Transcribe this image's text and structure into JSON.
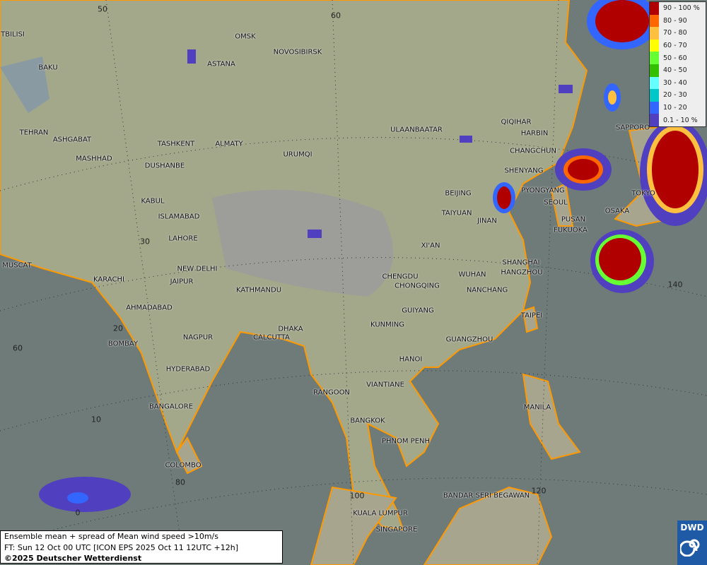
{
  "legend": {
    "title": "",
    "items": [
      {
        "label": "90 - 100 %",
        "color": "#b00000"
      },
      {
        "label": "80 - 90",
        "color": "#ff6600"
      },
      {
        "label": "70 - 80",
        "color": "#ffc040"
      },
      {
        "label": "60 - 70",
        "color": "#ffff00"
      },
      {
        "label": "50 - 60",
        "color": "#66ff33"
      },
      {
        "label": "40 - 50",
        "color": "#33c000"
      },
      {
        "label": "30 - 40",
        "color": "#66ffff"
      },
      {
        "label": "20 - 30",
        "color": "#00c8c8"
      },
      {
        "label": "10 - 20",
        "color": "#3366ff"
      },
      {
        "label": "0.1 - 10 %",
        "color": "#5040c0"
      }
    ]
  },
  "info": {
    "line1": "Ensemble mean + spread of Mean wind speed >10m/s",
    "line2": "FT: Sun 12 Oct 00 UTC [ICON EPS 2025 Oct 11 12UTC +12h]",
    "copyright": "©2025 Deutscher Wetterdienst"
  },
  "logo": {
    "text": "DWD"
  },
  "colors": {
    "sea": "#6f7b79",
    "land": "#a3a88a",
    "border": "#111111",
    "coast": "#ff9900"
  },
  "grid_labels": [
    "50",
    "60",
    "30",
    "20",
    "60",
    "10",
    "80",
    "100",
    "140",
    "120",
    "0"
  ],
  "cities": [
    "OMSK",
    "NOVOSIBIRSK",
    "ASTANA",
    "TBILISI",
    "BAKU",
    "TEHRAN",
    "ASHGABAT",
    "MASHHAD",
    "TASHKENT",
    "ALMATY",
    "URUMQI",
    "ULAANBAATAR",
    "QIQIHAR",
    "HARBIN",
    "CHANGCHUN",
    "SHENYANG",
    "BEIJING",
    "PYONGYANG",
    "SEOUL",
    "TOKYO",
    "SAPPORO",
    "OSAKA",
    "PUSAN",
    "FUKUOKA",
    "DUSHANBE",
    "KABUL",
    "ISLAMABAD",
    "LAHORE",
    "TAIYUAN",
    "JINAN",
    "XI'AN",
    "MUSCAT",
    "KARACHI",
    "NEW DELHI",
    "JAIPUR",
    "KATHMANDU",
    "CHENGDU",
    "CHONGQING",
    "WUHAN",
    "SHANGHAI",
    "HANGZHOU",
    "NANCHANG",
    "TAIPEI",
    "AHMADABAD",
    "GUIYANG",
    "KUNMING",
    "DHAKA",
    "CALCUTTA",
    "BOMBAY",
    "NAGPUR",
    "GUANGZHOU",
    "HANOI",
    "HYDERABAD",
    "RANGOON",
    "VIANTIANE",
    "MANILA",
    "BANGALORE",
    "BANGKOK",
    "PHNOM PENH",
    "COLOMBO",
    "BANDAR SERI BEGAWAN",
    "KUALA LUMPUR",
    "SINGAPORE"
  ]
}
